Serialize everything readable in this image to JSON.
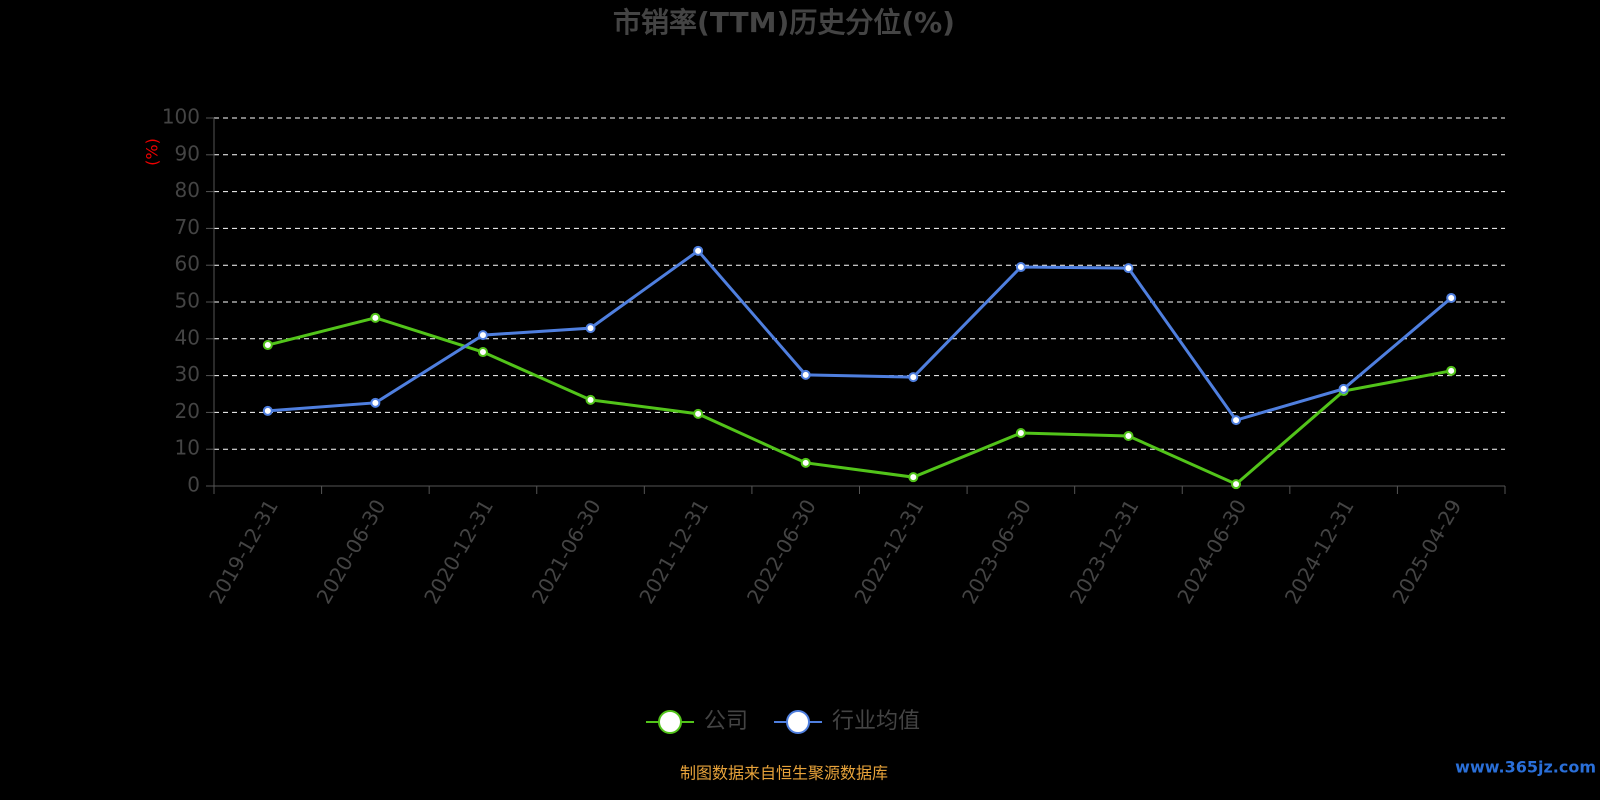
{
  "chart_data": {
    "type": "line",
    "title": "市销率(TTM)历史分位(%)",
    "y_label": "(%)",
    "categories": [
      "2019-12-31",
      "2020-06-30",
      "2020-12-31",
      "2021-06-30",
      "2021-12-31",
      "2022-06-30",
      "2022-12-31",
      "2023-06-30",
      "2023-12-31",
      "2024-06-30",
      "2024-12-31",
      "2025-04-29"
    ],
    "series": [
      {
        "name": "公司",
        "color": "#52c41a",
        "values": [
          38.3,
          45.7,
          36.4,
          23.4,
          19.6,
          6.3,
          2.4,
          14.4,
          13.6,
          0.5,
          25.8,
          31.3
        ]
      },
      {
        "name": "行业均值",
        "color": "#4f7fdf",
        "values": [
          20.4,
          22.6,
          41.0,
          42.9,
          63.9,
          30.2,
          29.6,
          59.5,
          59.2,
          17.9,
          26.4,
          51.1
        ]
      }
    ],
    "ylim": [
      0,
      100
    ],
    "yticks": [
      0,
      10,
      20,
      30,
      40,
      50,
      60,
      70,
      80,
      90,
      100
    ],
    "grid": true,
    "source": "制图数据来自恒生聚源数据库",
    "watermark": "www.365jz.com"
  }
}
